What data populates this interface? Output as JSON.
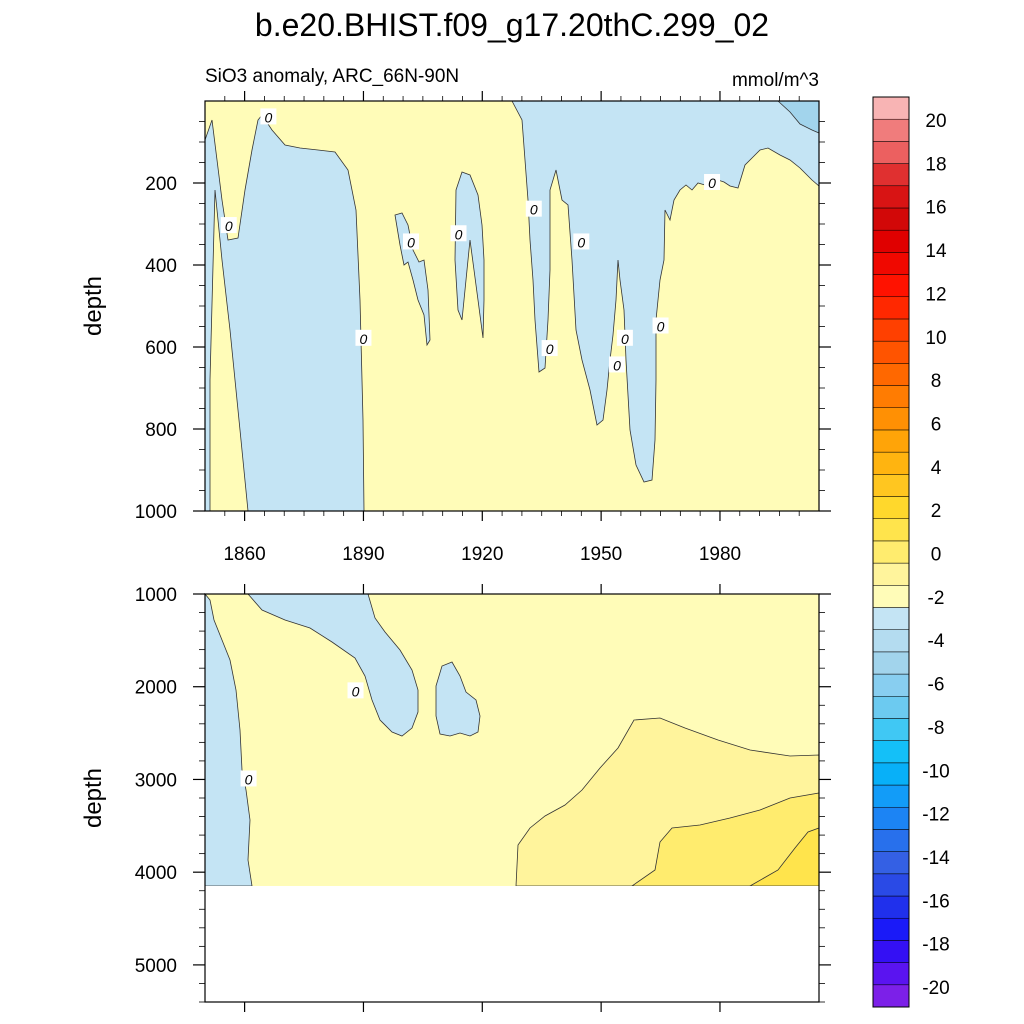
{
  "title": "b.e20.BHIST.f09_g17.20thC.299_02",
  "subtitle_left": "SiO3 anomaly, ARC_66N-90N",
  "subtitle_right": "mmol/m^3",
  "contour_label": "0",
  "chart_data": [
    {
      "type": "heatmap",
      "panel": "upper",
      "ylabel": "depth",
      "xlim": [
        1850,
        2005
      ],
      "ylim": [
        1000,
        0
      ],
      "y_reversed": true,
      "xticks": [
        1860,
        1890,
        1920,
        1950,
        1980
      ],
      "xtick_labels": [
        "1860",
        "1890",
        "1920",
        "1950",
        "1980"
      ],
      "yticks": [
        200,
        400,
        600,
        800,
        1000
      ],
      "ytick_labels": [
        "200",
        "400",
        "600",
        "800",
        "1000"
      ],
      "regions": [
        {
          "level": "0..2",
          "color": "#fffcb8",
          "desc": "background positive anomaly"
        },
        {
          "level": "-2..0",
          "color": "#c4e4f4",
          "x_range": [
            1851,
            1891
          ],
          "y_range": [
            0,
            1000
          ]
        },
        {
          "level": "-2..0",
          "color": "#c4e4f4",
          "x_range": [
            1902,
            1906
          ],
          "y_range": [
            280,
            600
          ]
        },
        {
          "level": "-2..0",
          "color": "#c4e4f4",
          "x_range": [
            1910,
            1920
          ],
          "y_range": [
            170,
            590
          ]
        },
        {
          "level": "-2..0",
          "color": "#c4e4f4",
          "x_range": [
            1932,
            1936
          ],
          "y_range": [
            200,
            670
          ]
        },
        {
          "level": "-2..0",
          "color": "#c4e4f4",
          "x_range": [
            1937,
            1962
          ],
          "y_range": [
            20,
            920
          ]
        },
        {
          "level": "-2..0",
          "color": "#c4e4f4",
          "x_range": [
            1962,
            2005
          ],
          "y_range": [
            20,
            230
          ]
        },
        {
          "level": "-4..-2",
          "color": "#a2d4ec",
          "x_range": [
            1998,
            2005
          ],
          "y_range": [
            20,
            80
          ]
        }
      ],
      "contour_label_positions": [
        [
          1866,
          40
        ],
        [
          1856,
          305
        ],
        [
          1890,
          580
        ],
        [
          1902,
          345
        ],
        [
          1914,
          325
        ],
        [
          1933,
          265
        ],
        [
          1937,
          605
        ],
        [
          1945,
          345
        ],
        [
          1954,
          645
        ],
        [
          1956,
          580
        ],
        [
          1965,
          550
        ],
        [
          1978,
          200
        ]
      ]
    },
    {
      "type": "heatmap",
      "panel": "lower",
      "ylabel": "depth",
      "xlim": [
        1850,
        2005
      ],
      "ylim": [
        5400,
        1000
      ],
      "y_reversed": true,
      "yticks": [
        1000,
        2000,
        3000,
        4000,
        5000
      ],
      "ytick_labels": [
        "1000",
        "2000",
        "3000",
        "4000",
        "5000"
      ],
      "data_bottom": 4120,
      "regions": [
        {
          "level": "0..2",
          "color": "#fffcb8"
        },
        {
          "level": "-2..0",
          "color": "#c4e4f4",
          "x_range": [
            1850,
            1862
          ],
          "y_range": [
            1000,
            4120
          ]
        },
        {
          "level": "-2..0",
          "color": "#c4e4f4",
          "x_range": [
            1863,
            1905
          ],
          "y_range": [
            1000,
            2540
          ]
        },
        {
          "level": "-2..0",
          "color": "#c4e4f4",
          "x_range": [
            1908,
            1920
          ],
          "y_range": [
            1780,
            2540
          ]
        },
        {
          "level": "2..4",
          "color": "#fff49c",
          "x_range": [
            1929,
            2005
          ],
          "y_range": [
            2340,
            4120
          ]
        },
        {
          "level": "4..6",
          "color": "#ffec6e",
          "x_range": [
            1958,
            2005
          ],
          "y_range": [
            3130,
            4120
          ]
        },
        {
          "level": "6..8",
          "color": "#ffe44c",
          "x_range": [
            1985,
            2005
          ],
          "y_range": [
            3530,
            4120
          ]
        }
      ],
      "contour_label_positions": [
        [
          1888,
          2050
        ],
        [
          1861,
          3000
        ]
      ]
    }
  ],
  "colorbar": {
    "levels": [
      -20,
      -18,
      -16,
      -14,
      -12,
      -10,
      -8,
      -6,
      -4,
      -2,
      0,
      2,
      4,
      6,
      8,
      10,
      12,
      14,
      16,
      18,
      20
    ],
    "label_values": [
      "-20",
      "-18",
      "-16",
      "-14",
      "-12",
      "-10",
      "-8",
      "-6",
      "-4",
      "-2",
      "0",
      "2",
      "4",
      "6",
      "8",
      "10",
      "12",
      "14",
      "16",
      "18",
      "20"
    ],
    "colors": [
      "#7c20e8",
      "#5a14f0",
      "#3410f4",
      "#1a1af8",
      "#2030ec",
      "#2a4ae6",
      "#3460e4",
      "#2870ec",
      "#1c84f4",
      "#129cf8",
      "#08b0f8",
      "#14c0f8",
      "#40c8f4",
      "#6ccaf0",
      "#88cef0",
      "#a2d4ec",
      "#b4dcf0",
      "#c4e4f4",
      "#fffcb8",
      "#fff49c",
      "#ffec6e",
      "#ffe44c",
      "#ffd82c",
      "#ffc620",
      "#ffb410",
      "#ffa408",
      "#ff9004",
      "#ff7c02",
      "#ff6800",
      "#ff5400",
      "#ff4000",
      "#ff2800",
      "#ff1200",
      "#f00800",
      "#e00000",
      "#d20808",
      "#d81414",
      "#e03030",
      "#ec6060",
      "#f07c7c",
      "#f8b4b4"
    ]
  }
}
